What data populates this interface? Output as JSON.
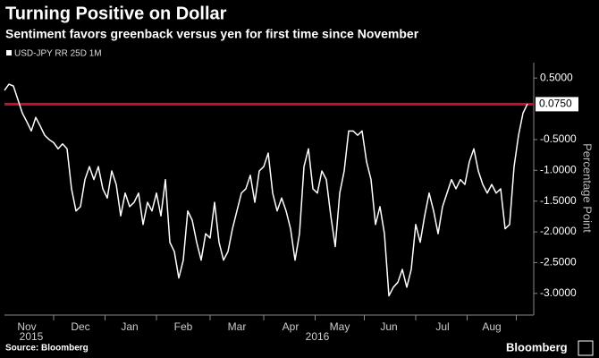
{
  "chart_data": {
    "type": "line",
    "title": "Turning Positive on Dollar",
    "subtitle": "Sentiment favors greenback versus yen for first time since November",
    "y_axis_label": "Percentage Point",
    "source": "Source: Bloomberg",
    "brand": "Bloomberg",
    "categories": [
      null,
      null,
      null,
      null,
      null,
      "Nov",
      null,
      null,
      null,
      null,
      null,
      null,
      null,
      null,
      null,
      null,
      null,
      "Dec",
      null,
      null,
      null,
      null,
      null,
      null,
      null,
      null,
      null,
      null,
      "Jan",
      null,
      null,
      null,
      null,
      null,
      null,
      null,
      null,
      null,
      null,
      null,
      "Feb",
      null,
      null,
      null,
      null,
      null,
      null,
      null,
      null,
      null,
      null,
      null,
      "Mar",
      null,
      null,
      null,
      null,
      null,
      null,
      null,
      null,
      null,
      null,
      null,
      "Apr",
      null,
      null,
      null,
      null,
      null,
      null,
      null,
      null,
      null,
      null,
      "May",
      null,
      null,
      null,
      null,
      null,
      null,
      null,
      null,
      null,
      null,
      "Jun",
      null,
      null,
      null,
      null,
      null,
      null,
      null,
      null,
      null,
      null,
      null,
      "Jul",
      null,
      null,
      null,
      null,
      null,
      null,
      null,
      null,
      null,
      null,
      "Aug",
      null,
      null,
      null,
      null,
      null,
      null,
      null,
      null
    ],
    "category_groups": [
      null,
      null,
      null,
      null,
      null,
      null,
      "2015",
      null,
      null,
      null,
      null,
      null,
      null,
      null,
      null,
      null,
      null,
      null,
      null,
      null,
      null,
      null,
      null,
      null,
      null,
      null,
      null,
      null,
      null,
      null,
      null,
      null,
      null,
      null,
      null,
      null,
      null,
      null,
      null,
      null,
      null,
      null,
      null,
      null,
      null,
      null,
      null,
      null,
      null,
      null,
      null,
      null,
      null,
      null,
      null,
      null,
      null,
      null,
      null,
      null,
      null,
      null,
      null,
      null,
      null,
      null,
      null,
      null,
      null,
      null,
      "2016",
      null,
      null,
      null,
      null,
      null,
      null,
      null,
      null,
      null,
      null,
      null,
      null,
      null,
      null,
      null,
      null,
      null,
      null,
      null,
      null,
      null,
      null,
      null,
      null,
      null,
      null,
      null,
      null,
      null,
      null,
      null,
      null,
      null,
      null,
      null,
      null,
      null,
      null,
      null,
      null,
      null,
      null,
      null,
      null,
      null,
      null,
      null
    ],
    "series": [
      {
        "name": "USD-JPY RR 25D 1M",
        "color": "#ffffff",
        "values": [
          0.3,
          0.4,
          0.37,
          0.15,
          -0.07,
          -0.21,
          -0.36,
          -0.14,
          -0.28,
          -0.43,
          -0.5,
          -0.55,
          -0.65,
          -0.57,
          -0.65,
          -1.3,
          -1.66,
          -1.59,
          -1.15,
          -0.94,
          -1.15,
          -0.94,
          -1.3,
          -1.45,
          -1.01,
          -1.23,
          -1.74,
          -1.37,
          -1.59,
          -1.52,
          -1.37,
          -1.88,
          -1.52,
          -1.66,
          -1.37,
          -1.74,
          -1.15,
          -2.17,
          -2.32,
          -2.75,
          -2.46,
          -1.66,
          -1.81,
          -2.17,
          -2.46,
          -2.03,
          -2.1,
          -1.52,
          -2.17,
          -2.46,
          -2.32,
          -1.95,
          -1.66,
          -1.37,
          -1.3,
          -1.08,
          -1.52,
          -1.01,
          -0.94,
          -0.72,
          -1.37,
          -1.66,
          -1.45,
          -1.66,
          -1.95,
          -2.46,
          -2.03,
          -0.94,
          -0.65,
          -1.3,
          -1.37,
          -1.01,
          -1.15,
          -1.74,
          -2.24,
          -1.37,
          -1.01,
          -0.36,
          -0.36,
          -0.43,
          -0.36,
          -0.86,
          -1.15,
          -1.88,
          -1.59,
          -2.03,
          -3.04,
          -2.9,
          -2.82,
          -2.61,
          -2.9,
          -2.61,
          -1.88,
          -2.17,
          -1.74,
          -1.37,
          -1.66,
          -2.03,
          -1.59,
          -1.37,
          -1.15,
          -1.3,
          -1.15,
          -1.23,
          -0.86,
          -0.65,
          -1.01,
          -1.23,
          -1.37,
          -1.23,
          -1.37,
          -1.3,
          -1.95,
          -1.88,
          -0.94,
          -0.43,
          -0.07,
          0.08
        ]
      }
    ],
    "reference_line": {
      "value": 0.075,
      "label": "0.0750",
      "color": "#c8102e"
    },
    "ylim": [
      -3.25,
      0.75
    ],
    "yticks": [
      {
        "value": 0.5,
        "label": "0.5000"
      },
      {
        "value": -0.5,
        "label": "-0.5000"
      },
      {
        "value": -1,
        "label": "-1.0000"
      },
      {
        "value": -1.5,
        "label": "-1.5000"
      },
      {
        "value": -2,
        "label": "-2.0000"
      },
      {
        "value": -2.5,
        "label": "-2.5000"
      },
      {
        "value": -3,
        "label": "-3.0000"
      }
    ],
    "grid": false
  }
}
